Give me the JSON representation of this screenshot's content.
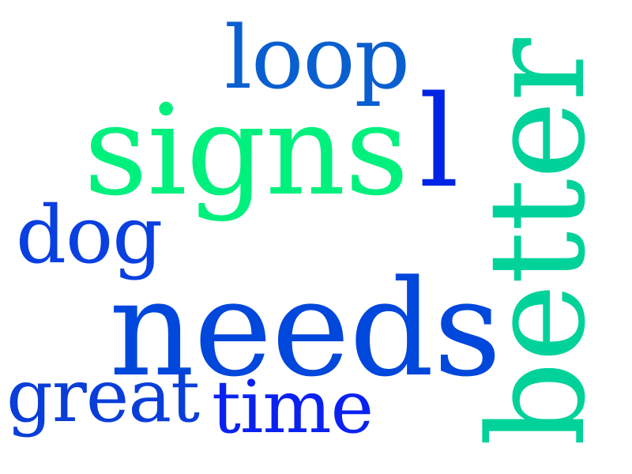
{
  "words": {
    "loop": {
      "text": "loop",
      "color": "#0a5fd0"
    },
    "signs": {
      "text": "signs",
      "color": "#00f07d"
    },
    "l": {
      "text": "l",
      "color": "#0024e6"
    },
    "dog": {
      "text": "dog",
      "color": "#0a40e0"
    },
    "needs": {
      "text": "needs",
      "color": "#0047dc"
    },
    "better": {
      "text": "better",
      "color": "#00d29a"
    },
    "great": {
      "text": "great",
      "color": "#0a3ed8"
    },
    "time": {
      "text": "time",
      "color": "#0a22f0"
    }
  }
}
